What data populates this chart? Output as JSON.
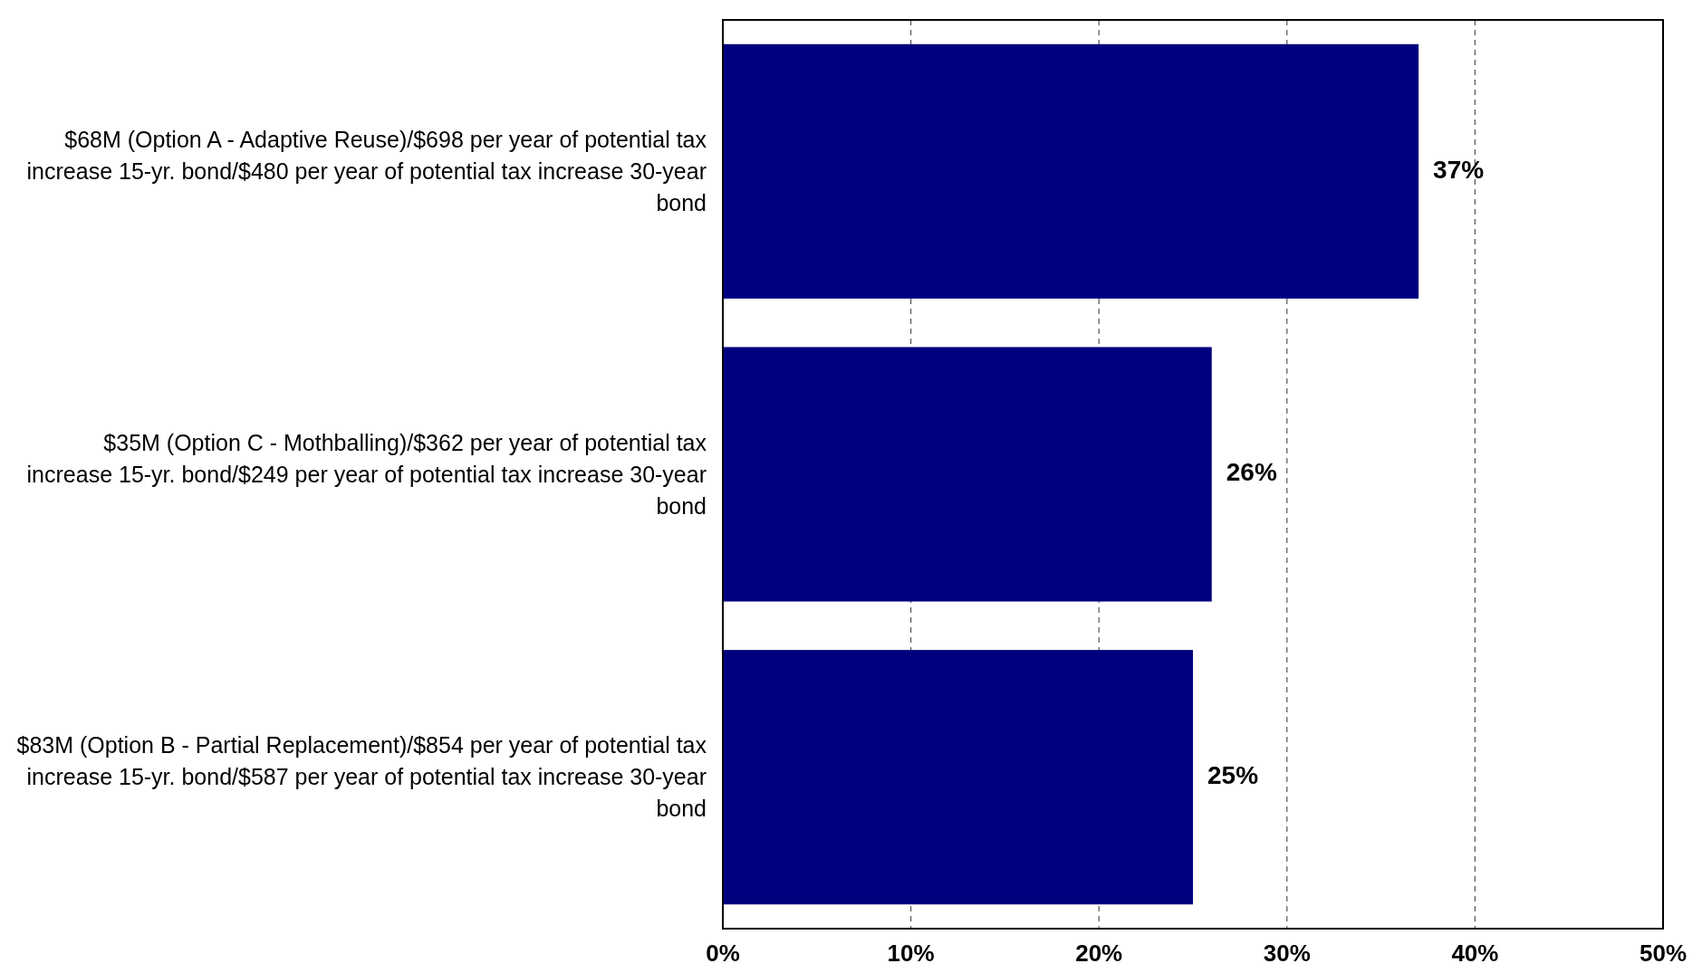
{
  "chart_data": {
    "type": "bar",
    "orientation": "horizontal",
    "categories": [
      "$68M (Option A - Adaptive Reuse)/$698 per year of potential tax increase 15-yr. bond/$480 per year of potential tax increase 30-year bond",
      "$35M (Option C - Mothballing)/$362 per year of potential tax increase 15-yr. bond/$249 per year of potential tax increase 30-year bond",
      "$83M (Option B - Partial Replacement)/$854 per year of potential tax increase 15-yr. bond/$587 per year of potential tax increase 30-year bond"
    ],
    "values": [
      37,
      26,
      25
    ],
    "color": "#00007f",
    "value_labels": [
      "37%",
      "26%",
      "25%"
    ],
    "xlim": [
      0,
      50
    ],
    "xticks": [
      {
        "value": 0,
        "label": "0%"
      },
      {
        "value": 10,
        "label": "10%"
      },
      {
        "value": 20,
        "label": "20%"
      },
      {
        "value": 30,
        "label": "30%"
      },
      {
        "value": 40,
        "label": "40%"
      },
      {
        "value": 50,
        "label": "50%"
      }
    ],
    "grid": "x"
  }
}
